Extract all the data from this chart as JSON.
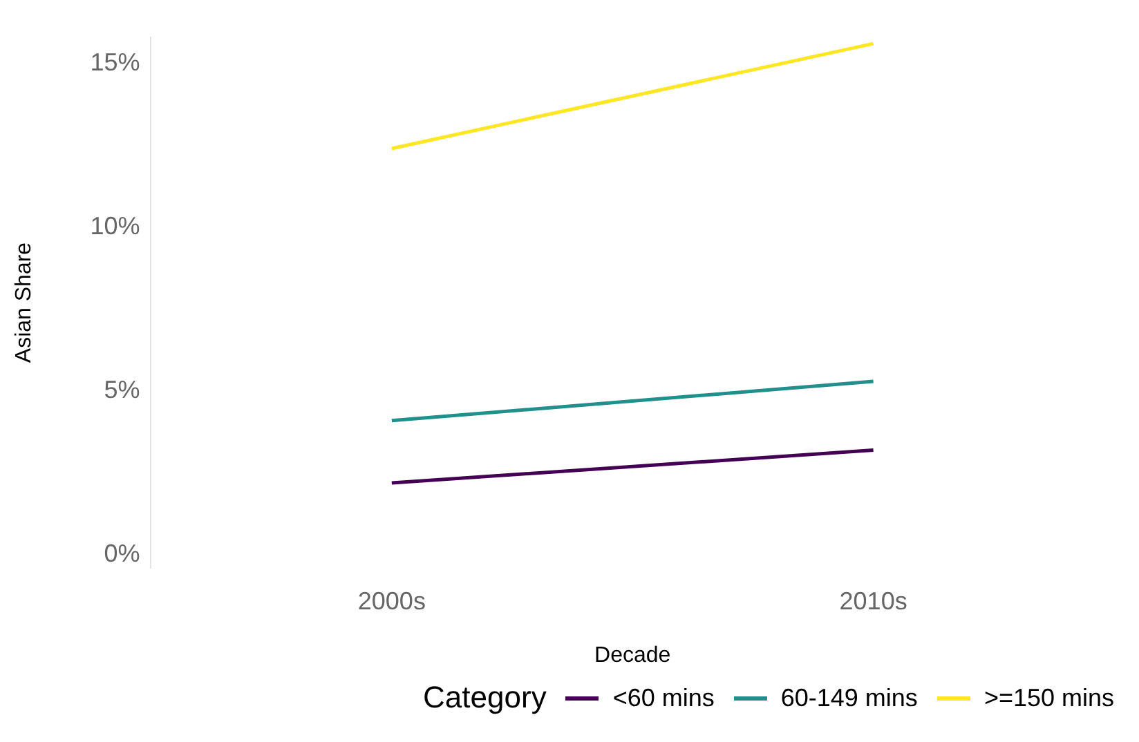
{
  "chart_data": {
    "type": "line",
    "xlabel": "Decade",
    "ylabel": "Asian Share",
    "legend_title": "Category",
    "categories": [
      "2000s",
      "2010s"
    ],
    "series": [
      {
        "name": "<60 mins",
        "color": "#440154",
        "values": [
          2.2,
          3.2
        ]
      },
      {
        "name": "60-149 mins",
        "color": "#21908c",
        "values": [
          4.1,
          5.3
        ]
      },
      {
        "name": ">=150 mins",
        "color": "#fde725",
        "values": [
          12.4,
          15.6
        ]
      }
    ],
    "ylim": [
      -0.4,
      15.8
    ],
    "yticks": [
      {
        "value": 0,
        "label": "0%"
      },
      {
        "value": 5,
        "label": "5%"
      },
      {
        "value": 10,
        "label": "10%"
      },
      {
        "value": 15,
        "label": "15%"
      }
    ],
    "grid": false,
    "legend": "bottom",
    "marker": "none",
    "line_style": "solid"
  }
}
